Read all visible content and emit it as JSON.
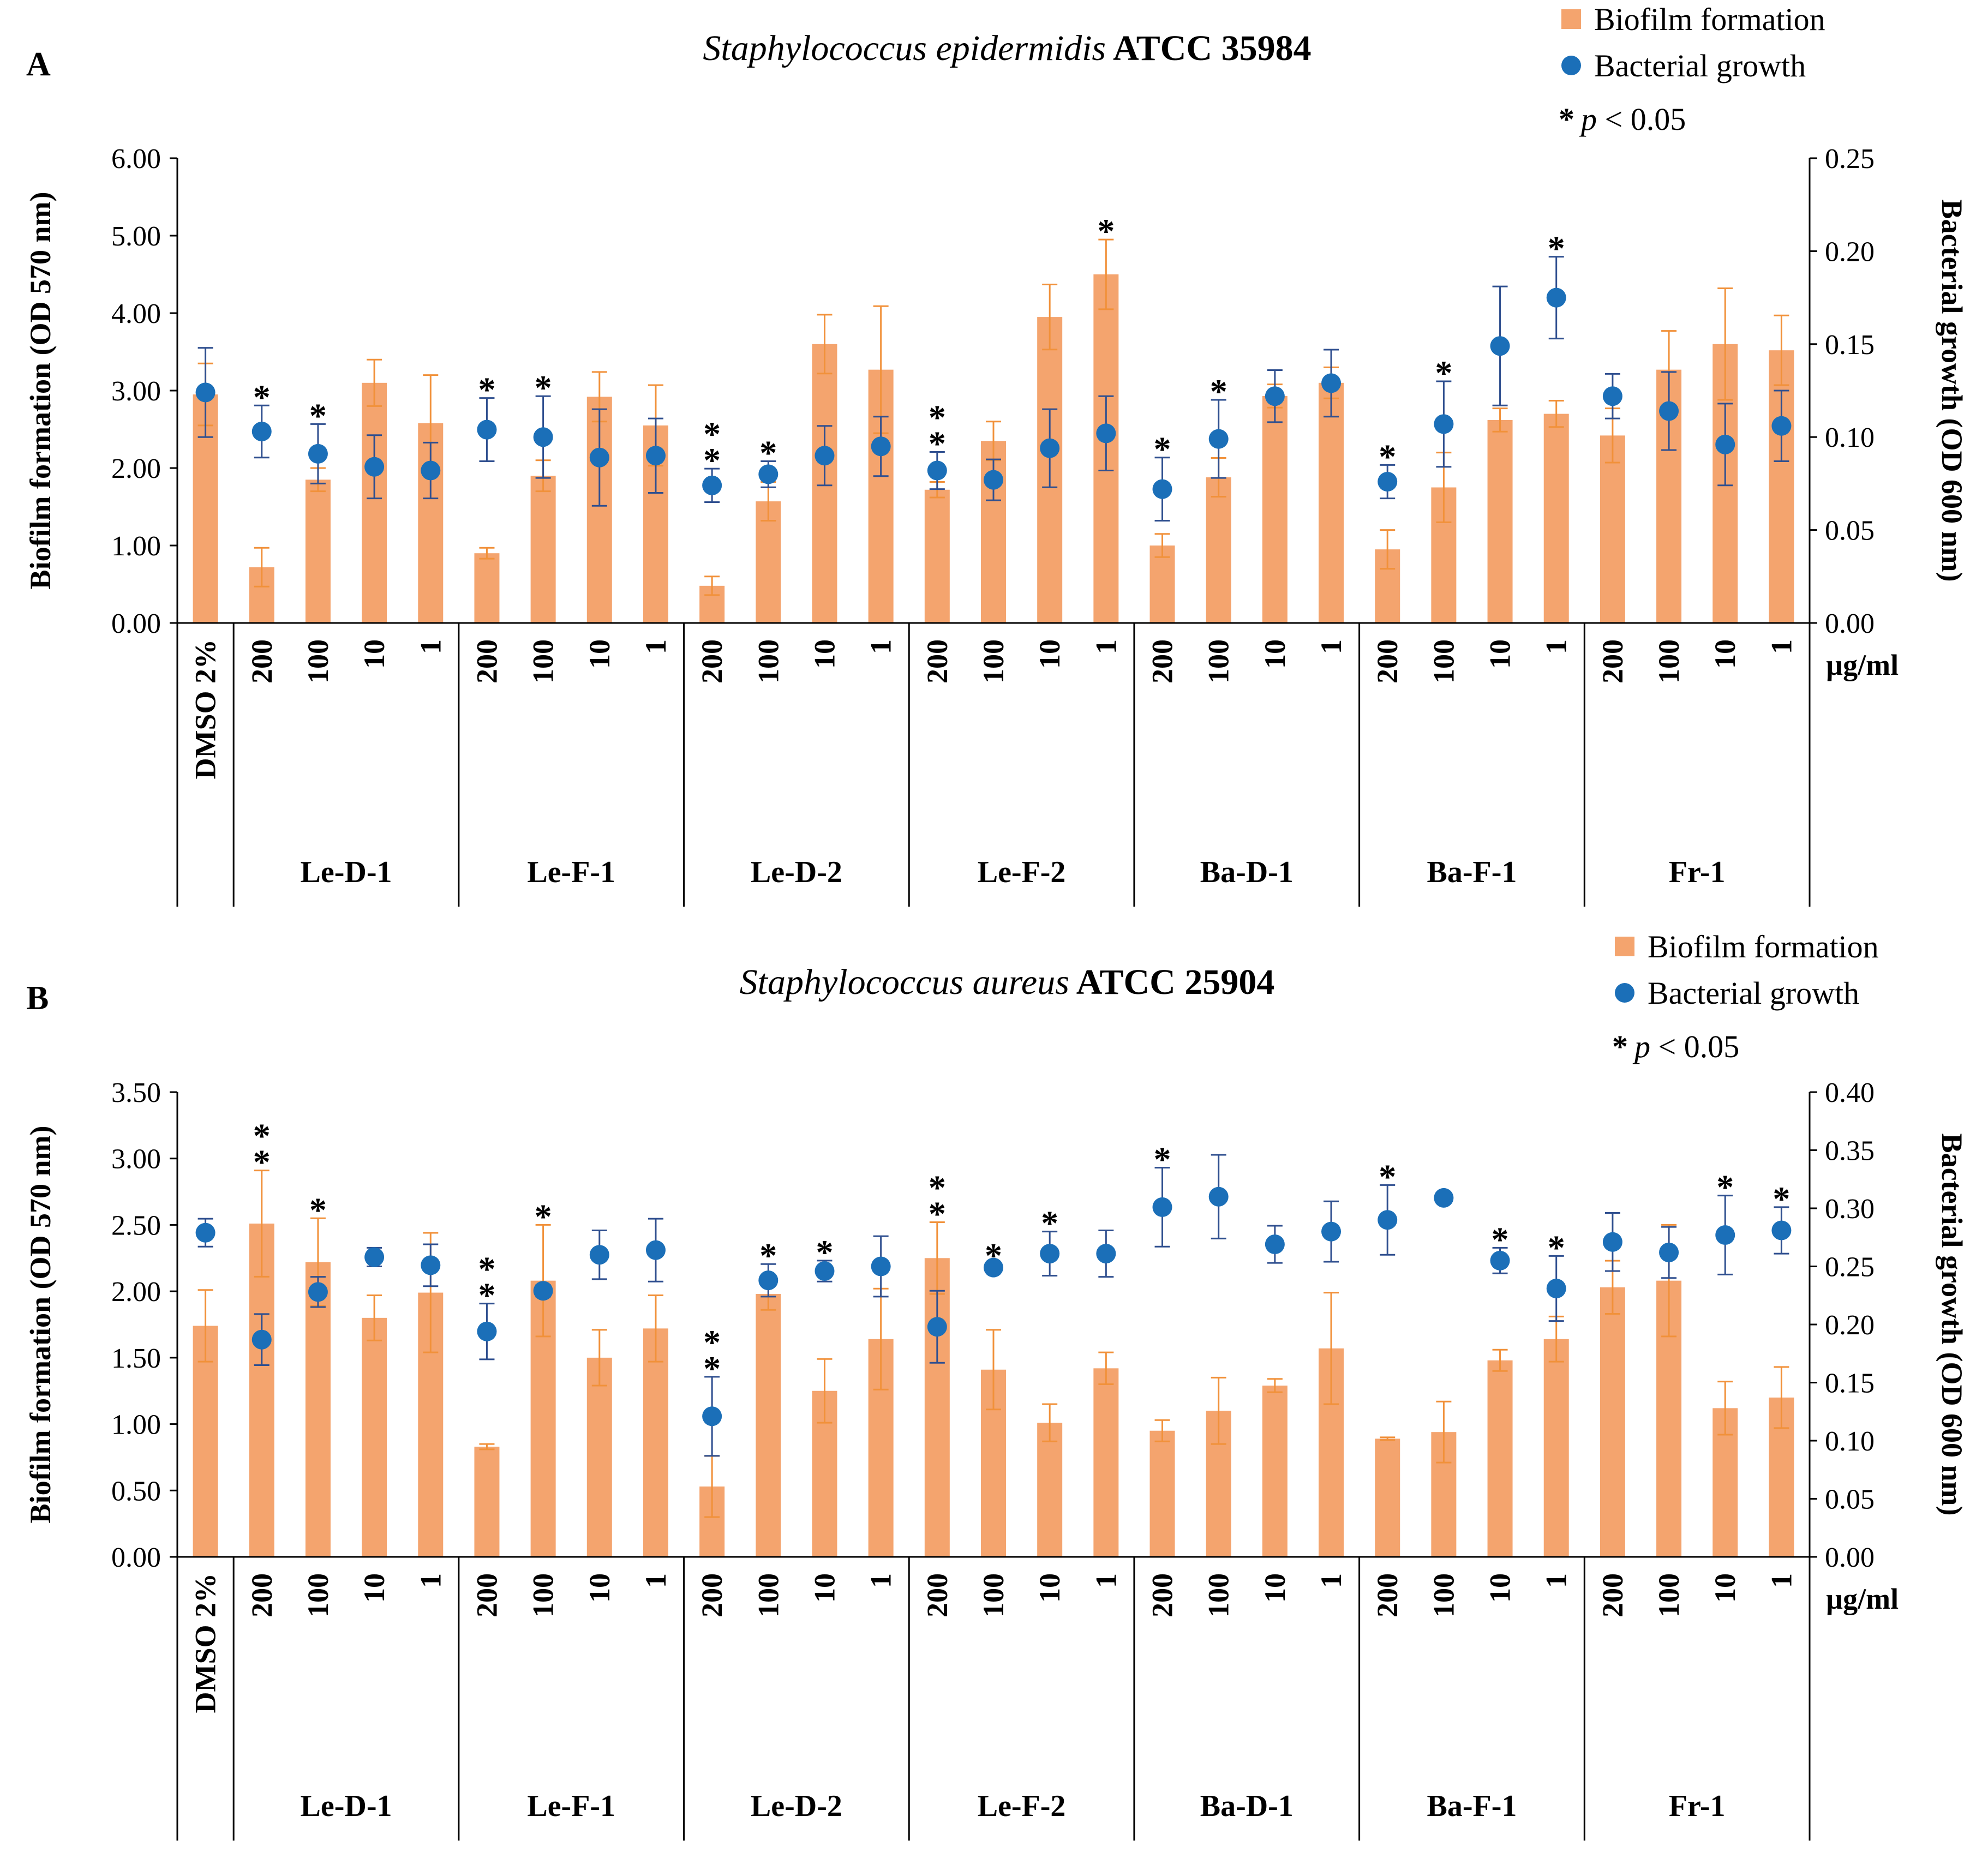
{
  "colors": {
    "bar": "#F4A46E",
    "bar_err": "#F1913A",
    "dot": "#1B6FB8",
    "dot_err": "#2F4F8F",
    "axis": "#000000",
    "star_orange": "#F39019",
    "star_blue": "#1B73C1"
  },
  "legend": {
    "bar_label": "Biofilm formation",
    "dot_label": "Bacterial growth",
    "sig_star": "*",
    "sig_p": "p",
    "sig_rest": " < 0.05"
  },
  "unit_label": "µg/ml",
  "chart_data": [
    {
      "type": "bar",
      "panel_letter": "A",
      "title_italic": "Staphylococcus epidermidis",
      "title_rest": " ATCC 35984",
      "ylabel": "Biofilm formation (OD 570 nm)",
      "y2label": "Bacterial growth (OD 600 nm)",
      "ylim": [
        0,
        6
      ],
      "yticks": [
        "0.00",
        "1.00",
        "2.00",
        "3.00",
        "4.00",
        "5.00",
        "6.00"
      ],
      "y2lim": [
        0,
        0.25
      ],
      "y2ticks": [
        "0.00",
        "0.05",
        "0.10",
        "0.15",
        "0.20",
        "0.25"
      ],
      "control_label": "DMSO 2%",
      "concentrations": [
        "200",
        "100",
        "10",
        "1"
      ],
      "groups": [
        "Le-D-1",
        "Le-F-1",
        "Le-D-2",
        "Le-F-2",
        "Ba-D-1",
        "Ba-F-1",
        "Fr-1"
      ],
      "series": [
        {
          "name": "Biofilm formation",
          "axis": "left",
          "values": [
            2.95,
            0.72,
            1.85,
            3.1,
            2.58,
            0.9,
            1.9,
            2.92,
            2.55,
            0.48,
            1.57,
            3.6,
            3.27,
            1.72,
            2.35,
            3.95,
            4.5,
            1.0,
            1.88,
            2.93,
            3.1,
            0.95,
            1.75,
            2.62,
            2.7,
            2.42,
            3.27,
            3.6,
            3.52
          ],
          "errors": [
            0.4,
            0.25,
            0.15,
            0.3,
            0.62,
            0.07,
            0.2,
            0.32,
            0.52,
            0.12,
            0.25,
            0.38,
            0.82,
            0.1,
            0.25,
            0.42,
            0.45,
            0.15,
            0.25,
            0.15,
            0.2,
            0.25,
            0.45,
            0.15,
            0.17,
            0.35,
            0.5,
            0.72,
            0.45
          ],
          "sig": [
            0,
            1,
            1,
            0,
            0,
            1,
            1,
            0,
            0,
            1,
            1,
            0,
            0,
            1,
            0,
            0,
            1,
            1,
            1,
            0,
            0,
            1,
            1,
            0,
            0,
            0,
            0,
            0,
            0
          ]
        },
        {
          "name": "Bacterial growth",
          "axis": "right",
          "values": [
            0.124,
            0.103,
            0.091,
            0.084,
            0.082,
            0.104,
            0.1,
            0.089,
            0.09,
            0.074,
            0.08,
            0.09,
            0.095,
            0.082,
            0.077,
            0.094,
            0.102,
            0.072,
            0.099,
            0.122,
            0.129,
            0.076,
            0.107,
            0.149,
            0.175,
            0.122,
            0.114,
            0.096,
            0.106
          ],
          "errors": [
            0.024,
            0.014,
            0.016,
            0.017,
            0.015,
            0.017,
            0.022,
            0.026,
            0.02,
            0.009,
            0.007,
            0.016,
            0.016,
            0.01,
            0.011,
            0.021,
            0.02,
            0.017,
            0.021,
            0.014,
            0.018,
            0.009,
            0.023,
            0.032,
            0.022,
            0.012,
            0.021,
            0.022,
            0.019
          ],
          "sig": [
            0,
            0,
            0,
            0,
            0,
            0,
            0,
            0,
            0,
            1,
            0,
            0,
            0,
            1,
            0,
            0,
            0,
            0,
            0,
            0,
            0,
            0,
            0,
            0,
            1,
            0,
            0,
            0,
            0
          ]
        }
      ]
    },
    {
      "type": "bar",
      "panel_letter": "B",
      "title_italic": "Staphylococcus aureus",
      "title_rest": " ATCC 25904",
      "ylabel": "Biofilm formation (OD 570 nm)",
      "y2label": "Bacterial growth (OD 600 nm)",
      "ylim": [
        0,
        3.5
      ],
      "yticks": [
        "0.00",
        "0.50",
        "1.00",
        "1.50",
        "2.00",
        "2.50",
        "3.00",
        "3.50"
      ],
      "y2lim": [
        0,
        0.4
      ],
      "y2ticks": [
        "0.00",
        "0.05",
        "0.10",
        "0.15",
        "0.20",
        "0.25",
        "0.30",
        "0.35",
        "0.40"
      ],
      "control_label": "DMSO 2%",
      "concentrations": [
        "200",
        "100",
        "10",
        "1"
      ],
      "groups": [
        "Le-D-1",
        "Le-F-1",
        "Le-D-2",
        "Le-F-2",
        "Ba-D-1",
        "Ba-F-1",
        "Fr-1"
      ],
      "series": [
        {
          "name": "Biofilm formation",
          "axis": "left",
          "values": [
            1.74,
            2.51,
            2.22,
            1.8,
            1.99,
            0.83,
            2.08,
            1.5,
            1.72,
            0.53,
            1.98,
            1.25,
            1.64,
            2.25,
            1.41,
            1.01,
            1.42,
            0.95,
            1.1,
            1.29,
            1.57,
            0.89,
            0.94,
            1.48,
            1.64,
            2.03,
            2.08,
            1.12,
            1.2
          ],
          "errors": [
            0.27,
            0.4,
            0.33,
            0.17,
            0.45,
            0.02,
            0.42,
            0.21,
            0.25,
            0.23,
            0.12,
            0.24,
            0.38,
            0.27,
            0.3,
            0.14,
            0.12,
            0.08,
            0.25,
            0.05,
            0.42,
            0.01,
            0.23,
            0.08,
            0.17,
            0.2,
            0.42,
            0.2,
            0.23
          ],
          "sig": [
            0,
            1,
            0,
            0,
            0,
            1,
            0,
            0,
            0,
            1,
            0,
            1,
            0,
            1,
            0,
            1,
            0,
            1,
            0,
            0,
            0,
            1,
            0,
            0,
            0,
            0,
            0,
            1,
            1
          ]
        },
        {
          "name": "Bacterial growth",
          "axis": "right",
          "values": [
            0.279,
            0.187,
            0.228,
            0.258,
            0.251,
            0.194,
            0.229,
            0.26,
            0.264,
            0.121,
            0.238,
            0.246,
            0.25,
            0.198,
            0.249,
            0.261,
            0.261,
            0.301,
            0.31,
            0.269,
            0.28,
            0.29,
            0.309,
            0.255,
            0.231,
            0.271,
            0.262,
            0.277,
            0.281
          ],
          "errors": [
            0.012,
            0.022,
            0.013,
            0.008,
            0.018,
            0.024,
            0.005,
            0.021,
            0.027,
            0.034,
            0.014,
            0.009,
            0.026,
            0.031,
            0.003,
            0.019,
            0.02,
            0.034,
            0.036,
            0.016,
            0.026,
            0.03,
            0.003,
            0.011,
            0.028,
            0.025,
            0.022,
            0.034,
            0.02
          ],
          "sig": [
            0,
            1,
            1,
            0,
            0,
            1,
            1,
            0,
            0,
            1,
            1,
            0,
            0,
            1,
            1,
            0,
            0,
            0,
            0,
            0,
            0,
            0,
            0,
            1,
            1,
            0,
            0,
            0,
            0
          ]
        }
      ]
    }
  ]
}
